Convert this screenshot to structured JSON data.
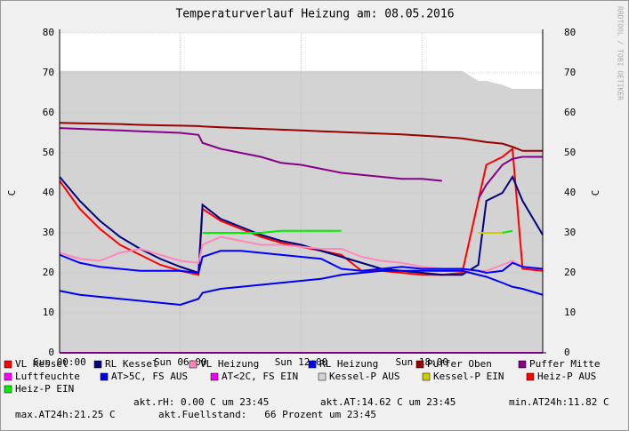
{
  "chart_data": {
    "type": "line",
    "title": "Temperaturverlauf Heizung am: 08.05.2016",
    "ylabel": "C",
    "y2label": "C",
    "watermark": "RRDTOOL / TOBI OETIKER",
    "xlim": [
      0,
      24
    ],
    "xticks": [
      {
        "value": 0,
        "label": "Sun 00:00"
      },
      {
        "value": 6,
        "label": "Sun 06:00"
      },
      {
        "value": 12,
        "label": "Sun 12:00"
      },
      {
        "value": 18,
        "label": "Sun 18:00"
      }
    ],
    "ylim": [
      0,
      80
    ],
    "yticks": [
      0,
      10,
      20,
      30,
      40,
      50,
      60,
      70,
      80
    ],
    "grid": true,
    "x": [
      0,
      1,
      2,
      3,
      4,
      5,
      6,
      6.9,
      7.1,
      8,
      9,
      10,
      11,
      12,
      13,
      14,
      15,
      16,
      17,
      18,
      19,
      20,
      20.8,
      21.2,
      22,
      22.5,
      23,
      24
    ],
    "series": [
      {
        "name": "Kessel-P AUS",
        "color": "#d3d3d3",
        "style": "area",
        "values": [
          70.5,
          70.5,
          70.5,
          70.5,
          70.5,
          70.5,
          70.5,
          70.5,
          70.5,
          70.5,
          70.5,
          70.5,
          70.5,
          70.5,
          70.5,
          70.5,
          70.5,
          70.5,
          70.5,
          70.5,
          70.5,
          70.5,
          68,
          68,
          67,
          66,
          66,
          66
        ]
      },
      {
        "name": "VL Kessel",
        "color": "#ff0000",
        "values": [
          43,
          36,
          31,
          27,
          24.5,
          22,
          20.5,
          19.5,
          36,
          33,
          31,
          29,
          27.5,
          26.5,
          25.5,
          24.5,
          20.5,
          20.5,
          20,
          19.5,
          19.5,
          20,
          38,
          47,
          49,
          51,
          21,
          20.5
        ]
      },
      {
        "name": "RL Kessel",
        "color": "#000080",
        "values": [
          44,
          38,
          33,
          29,
          26,
          23.5,
          21.5,
          20,
          37,
          33.5,
          31.5,
          29.5,
          28,
          27,
          25.5,
          24,
          22.5,
          21,
          20.5,
          20,
          19.5,
          19.5,
          22,
          38,
          40,
          44,
          38,
          29.5
        ]
      },
      {
        "name": "VL Heizung",
        "color": "#ff88bb",
        "values": [
          25,
          23.5,
          23,
          25,
          26,
          24.5,
          23,
          22.5,
          27,
          29,
          28,
          27,
          27,
          26.5,
          26,
          26,
          24,
          23,
          22.5,
          21.5,
          21,
          20.5,
          20.5,
          20.5,
          22,
          23,
          21.5,
          21
        ]
      },
      {
        "name": "RL Heizung",
        "color": "#0000ff",
        "values": [
          24.5,
          22.5,
          21.5,
          21,
          20.5,
          20.5,
          20.5,
          20,
          24,
          25.5,
          25.5,
          25,
          24.5,
          24,
          23.5,
          21,
          20.5,
          21,
          21.5,
          21,
          21,
          21,
          20.5,
          20,
          20.5,
          22.5,
          21.5,
          21
        ]
      },
      {
        "name": "Puffer Oben",
        "color": "#990000",
        "values": [
          57.5,
          57.4,
          57.3,
          57.2,
          57,
          56.9,
          56.8,
          56.7,
          56.6,
          56.4,
          56.2,
          56,
          55.8,
          55.6,
          55.4,
          55.2,
          55,
          54.8,
          54.6,
          54.3,
          54,
          53.6,
          53,
          52.7,
          52.3,
          51.5,
          50.5,
          50.5
        ]
      },
      {
        "name": "Puffer Mitte",
        "color": "#880088",
        "values": [
          56.2,
          56,
          55.8,
          55.6,
          55.4,
          55.2,
          55,
          54.5,
          52.5,
          51,
          50,
          49,
          47.5,
          47,
          46,
          45,
          44.5,
          44,
          43.5,
          43.5,
          43,
          null,
          38.5,
          42,
          47,
          48.5,
          49,
          49
        ]
      },
      {
        "name": "Luftfeuchte",
        "color": "#ff00ff",
        "values": [
          0,
          0,
          0,
          0,
          0,
          0,
          0,
          0,
          0,
          0,
          0,
          0,
          0,
          0,
          0,
          0,
          0,
          0,
          0,
          0,
          0,
          0,
          0,
          0,
          0,
          0,
          0,
          0
        ]
      },
      {
        "name": "AT>5C, FS AUS",
        "color": "#0000ee",
        "values": [
          15.5,
          14.5,
          14,
          13.5,
          13,
          12.5,
          12,
          13.5,
          15,
          16,
          16.5,
          17,
          17.5,
          18,
          18.5,
          19.5,
          20,
          20.5,
          20.5,
          20.5,
          20.5,
          20.5,
          19.5,
          19,
          17.5,
          16.5,
          16,
          14.5
        ]
      },
      {
        "name": "AT<2C, FS EIN",
        "color": "#ee00ee",
        "values": [
          null,
          null,
          null,
          null,
          null,
          null,
          null,
          null,
          null,
          null,
          null,
          null,
          null,
          null,
          null,
          null,
          null,
          null,
          null,
          null,
          null,
          null,
          null,
          null,
          null,
          null,
          null,
          null
        ]
      },
      {
        "name": "Kessel-P EIN",
        "color": "#cccc00",
        "values": [
          null,
          null,
          null,
          null,
          null,
          null,
          null,
          null,
          null,
          null,
          null,
          null,
          null,
          null,
          null,
          null,
          null,
          null,
          null,
          null,
          null,
          null,
          30,
          30,
          30,
          null,
          null,
          null
        ]
      },
      {
        "name": "Heiz-P AUS",
        "color": "#ff0000",
        "values": [
          null,
          null,
          null,
          null,
          null,
          null,
          null,
          null,
          null,
          null,
          null,
          null,
          null,
          null,
          null,
          null,
          null,
          null,
          null,
          null,
          null,
          null,
          null,
          null,
          null,
          null,
          null,
          null
        ]
      },
      {
        "name": "Heiz-P EIN",
        "color": "#00ee00",
        "values": [
          null,
          null,
          null,
          null,
          null,
          null,
          null,
          null,
          30,
          30,
          30,
          30,
          30.5,
          30.5,
          30.5,
          30.5,
          null,
          null,
          null,
          null,
          null,
          null,
          null,
          null,
          30,
          30.5,
          null,
          null
        ]
      }
    ],
    "stats": [
      "akt.rH: 0.00 C um 23:45",
      "akt.AT:14.62 C um 23:45",
      "min.AT24h:11.82 C",
      "max.AT24h:21.25 C",
      "akt.Fuellstand:   66 Prozent um 23:45"
    ]
  }
}
